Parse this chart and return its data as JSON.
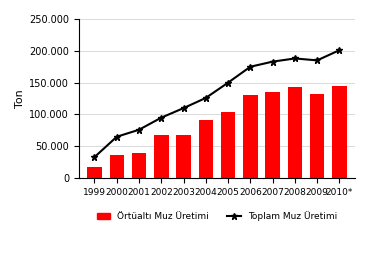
{
  "years": [
    "1999",
    "2000",
    "2001",
    "2002",
    "2003",
    "2004",
    "2005",
    "2006",
    "2007",
    "2008",
    "2009",
    "2010*"
  ],
  "ortualti": [
    18000,
    37000,
    40000,
    68000,
    67000,
    91000,
    104000,
    131000,
    136000,
    143000,
    132000,
    145000
  ],
  "toplam": [
    33000,
    65000,
    76000,
    95000,
    110000,
    126000,
    150000,
    175000,
    183000,
    188000,
    185000,
    201000
  ],
  "bar_color": "#FF0000",
  "line_color": "#000000",
  "ylim": [
    0,
    250000
  ],
  "yticks": [
    0,
    50000,
    100000,
    150000,
    200000,
    250000
  ],
  "ytick_labels": [
    "0",
    "50.000",
    "100.000",
    "150.000",
    "200.000",
    "250.000"
  ],
  "ylabel": "Ton",
  "legend_bar": "Örtüaltı Muz Üretimi",
  "legend_line": "Toplam Muz Üretimi",
  "bg_color": "#FFFFFF",
  "grid_color": "#CCCCCC",
  "figure_width": 3.7,
  "figure_height": 2.8
}
